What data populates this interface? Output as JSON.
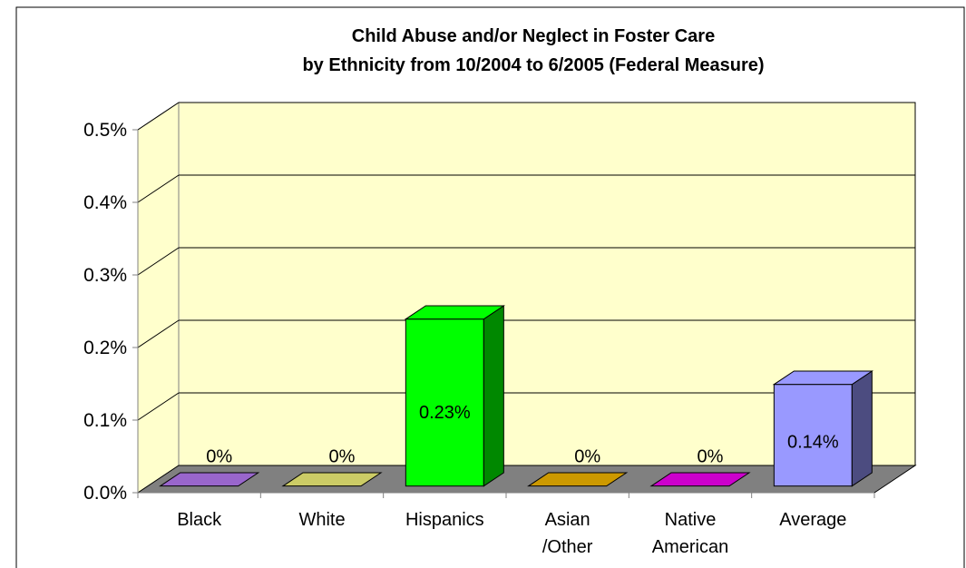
{
  "chart_data": {
    "type": "bar",
    "title": "Child Abuse and/or Neglect in Foster Care",
    "subtitle": "by Ethnicity from 10/2004 to 6/2005 (Federal Measure)",
    "categories": [
      [
        "Black"
      ],
      [
        "White"
      ],
      [
        "Hispanics"
      ],
      [
        "Asian",
        "/Other"
      ],
      [
        "Native",
        "American"
      ],
      [
        "Average"
      ]
    ],
    "values": [
      0,
      0,
      0.23,
      0,
      0,
      0.14
    ],
    "data_labels": [
      "0%",
      "0%",
      "0.23%",
      "0%",
      "0%",
      "0.14%"
    ],
    "yticks": [
      "0.0%",
      "0.1%",
      "0.2%",
      "0.3%",
      "0.4%",
      "0.5%"
    ],
    "ylim": [
      0,
      0.5
    ],
    "grid": true,
    "style_3d": true,
    "colors": {
      "plot_wall": "#ffffcc",
      "floor": "#808080",
      "bars": [
        "#9966cc",
        "#cccc66",
        "#00ff00",
        "#cc9900",
        "#cc00cc",
        "#9999ff"
      ],
      "bars_dark": [
        "#663399",
        "#999933",
        "#008800",
        "#996600",
        "#880088",
        "#4c4c80"
      ]
    }
  }
}
